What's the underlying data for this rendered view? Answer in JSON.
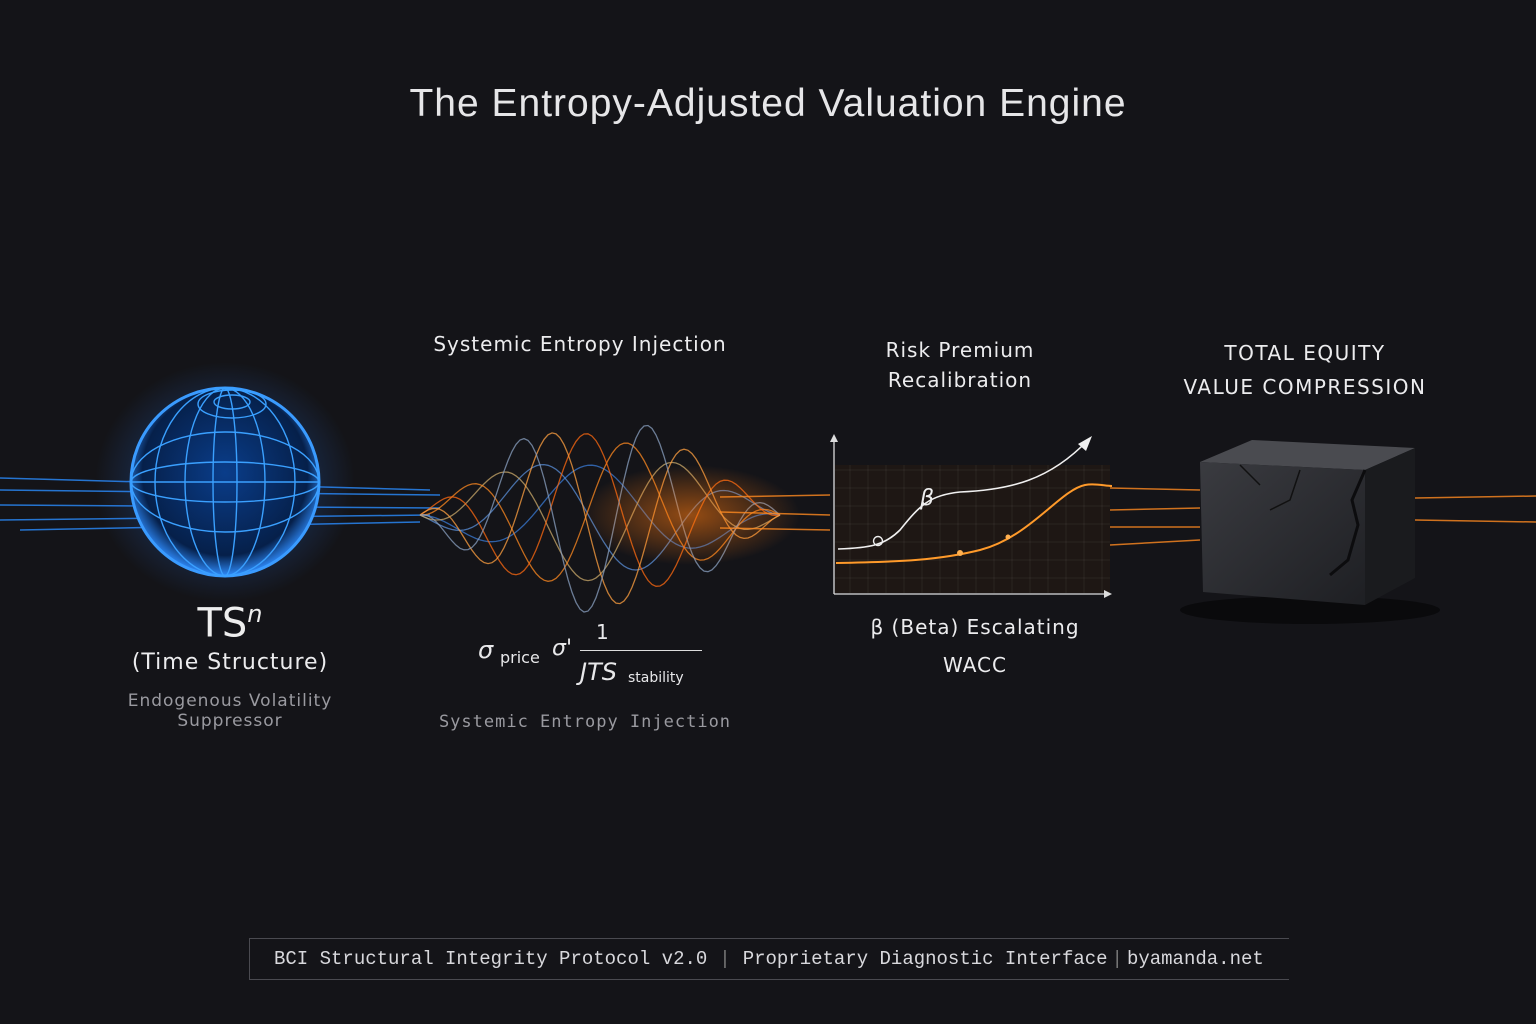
{
  "title": "The Entropy-Adjusted Valuation Engine",
  "stages": [
    {
      "symbol": "TS",
      "superscript": "n",
      "label": "(Time Structure)",
      "subtitle": "Endogenous Volatility Suppressor"
    },
    {
      "heading": "Systemic Entropy Injection",
      "formula": {
        "lhs": "σ",
        "lhs_sub": "price",
        "op": "σ'",
        "numerator": "1",
        "denominator": "JTS",
        "denominator_sub": "stability"
      },
      "subtitle": "Systemic Entropy Injection"
    },
    {
      "heading_line1": "Risk Premium",
      "heading_line2": "Recalibration",
      "chart_marker": "β",
      "caption_line1": "β (Beta) Escalating",
      "caption_line2": "WACC"
    },
    {
      "heading_line1": "TOTAL EQUITY",
      "heading_line2": "VALUE COMPRESSION"
    }
  ],
  "footer": {
    "part1": "BCI Structural Integrity Protocol v2.0",
    "part2": "Proprietary Diagnostic Interface",
    "part3": "byamanda.net"
  },
  "colors": {
    "background": "#141418",
    "blue": "#2a8cff",
    "orange": "#ff8a20",
    "text": "#e8e8ea"
  }
}
